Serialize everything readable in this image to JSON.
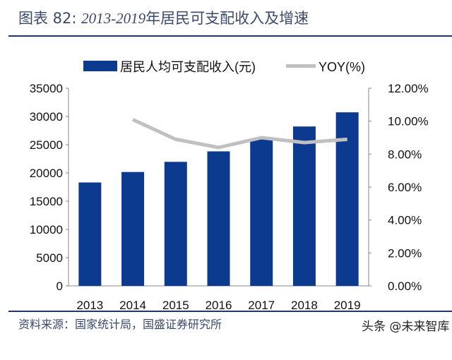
{
  "title": {
    "prefix": "图表 82:",
    "range": "2013-2019",
    "text": "年居民可支配收入及增速"
  },
  "source": "资料来源：国家统计局，国盛证券研究所",
  "watermark": "头条 @未来智库",
  "colors": {
    "bar": "#0b3a8f",
    "line": "#c0c0c0",
    "title": "#3b4a6b",
    "rule": "#1f3864"
  },
  "chart_data": {
    "type": "bar+line",
    "categories": [
      "2013",
      "2014",
      "2015",
      "2016",
      "2017",
      "2018",
      "2019"
    ],
    "series": [
      {
        "name": "居民人均可支配收入(元)",
        "type": "bar",
        "axis": "left",
        "values": [
          18311,
          20167,
          21966,
          23821,
          25974,
          28228,
          30733
        ]
      },
      {
        "name": "YOY(%)",
        "type": "line",
        "axis": "right",
        "values": [
          null,
          10.1,
          8.9,
          8.4,
          9.0,
          8.7,
          8.9
        ]
      }
    ],
    "ylim_left": [
      0,
      35000
    ],
    "yticks_left": [
      "0",
      "5000",
      "10000",
      "15000",
      "20000",
      "25000",
      "30000",
      "35000"
    ],
    "ylim_right": [
      0,
      12
    ],
    "yticks_right": [
      "0.00%",
      "2.00%",
      "4.00%",
      "6.00%",
      "8.00%",
      "10.00%",
      "12.00%"
    ],
    "legend_position": "top",
    "grid": false
  }
}
